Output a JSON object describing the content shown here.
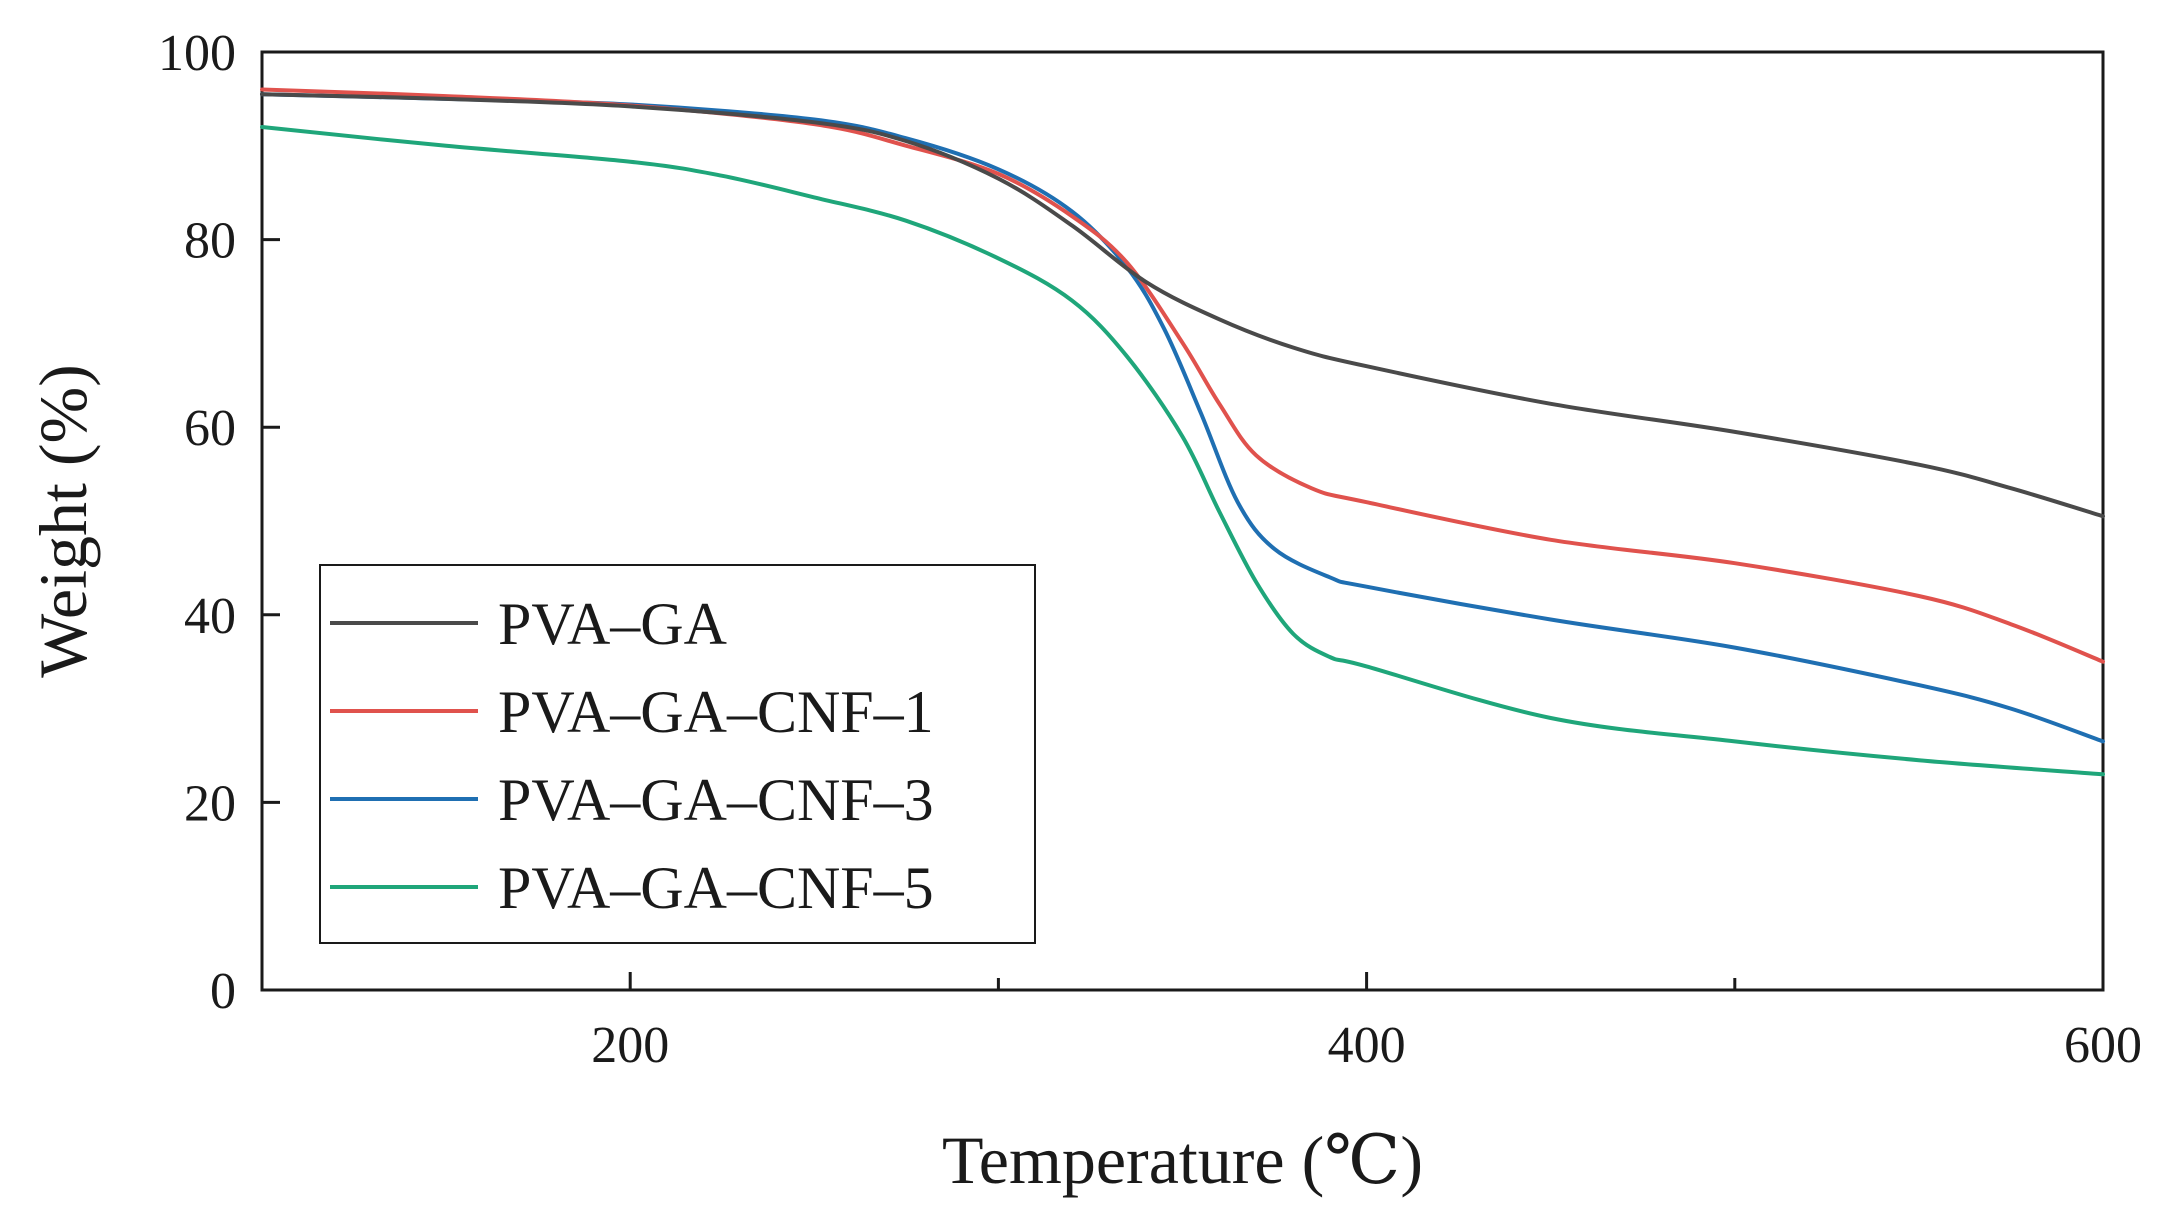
{
  "chart_data": {
    "type": "line",
    "title": "",
    "xlabel": "Temperature (℃)",
    "ylabel": "Weight (%)",
    "xlim": [
      100,
      600
    ],
    "ylim": [
      0,
      100
    ],
    "x_ticks": [
      200,
      400,
      600
    ],
    "y_ticks": [
      0,
      20,
      40,
      60,
      80,
      100
    ],
    "x_minor_ticks": [
      300,
      500
    ],
    "grid": false,
    "legend_position": "lower-left",
    "series": [
      {
        "name": "PVA–GA",
        "color": "#4a4a4a",
        "points": [
          [
            100,
            95.5
          ],
          [
            150,
            95.0
          ],
          [
            200,
            94.2
          ],
          [
            250,
            92.5
          ],
          [
            275,
            90.5
          ],
          [
            300,
            86.5
          ],
          [
            320,
            81.5
          ],
          [
            340,
            75.5
          ],
          [
            360,
            71.5
          ],
          [
            380,
            68.5
          ],
          [
            400,
            66.5
          ],
          [
            450,
            62.5
          ],
          [
            500,
            59.5
          ],
          [
            550,
            56.0
          ],
          [
            575,
            53.5
          ],
          [
            600,
            50.5
          ]
        ]
      },
      {
        "name": "PVA–GA–CNF–1",
        "color": "#e0524d",
        "points": [
          [
            100,
            96.0
          ],
          [
            150,
            95.3
          ],
          [
            200,
            94.3
          ],
          [
            250,
            92.3
          ],
          [
            275,
            90.0
          ],
          [
            300,
            87.0
          ],
          [
            320,
            82.5
          ],
          [
            335,
            77.5
          ],
          [
            350,
            69.0
          ],
          [
            360,
            62.5
          ],
          [
            370,
            57.0
          ],
          [
            385,
            53.5
          ],
          [
            400,
            52.0
          ],
          [
            450,
            48.0
          ],
          [
            500,
            45.5
          ],
          [
            550,
            42.0
          ],
          [
            575,
            39.0
          ],
          [
            600,
            35.0
          ]
        ]
      },
      {
        "name": "PVA–GA–CNF–3",
        "color": "#1f6fb2",
        "points": [
          [
            100,
            95.5
          ],
          [
            150,
            95.0
          ],
          [
            200,
            94.4
          ],
          [
            250,
            92.8
          ],
          [
            275,
            90.8
          ],
          [
            300,
            87.5
          ],
          [
            320,
            83.0
          ],
          [
            335,
            77.0
          ],
          [
            345,
            70.5
          ],
          [
            355,
            61.5
          ],
          [
            365,
            52.0
          ],
          [
            375,
            47.0
          ],
          [
            390,
            44.0
          ],
          [
            400,
            43.0
          ],
          [
            450,
            39.5
          ],
          [
            500,
            36.5
          ],
          [
            550,
            32.5
          ],
          [
            575,
            30.0
          ],
          [
            600,
            26.5
          ]
        ]
      },
      {
        "name": "PVA–GA–CNF–5",
        "color": "#1fa67a",
        "points": [
          [
            100,
            92.0
          ],
          [
            150,
            90.0
          ],
          [
            200,
            88.3
          ],
          [
            225,
            86.8
          ],
          [
            250,
            84.5
          ],
          [
            275,
            82.0
          ],
          [
            300,
            78.0
          ],
          [
            320,
            73.5
          ],
          [
            335,
            67.5
          ],
          [
            350,
            59.0
          ],
          [
            360,
            51.0
          ],
          [
            370,
            43.5
          ],
          [
            380,
            38.0
          ],
          [
            390,
            35.5
          ],
          [
            400,
            34.5
          ],
          [
            450,
            29.0
          ],
          [
            500,
            26.5
          ],
          [
            550,
            24.5
          ],
          [
            600,
            23.0
          ]
        ]
      }
    ]
  }
}
